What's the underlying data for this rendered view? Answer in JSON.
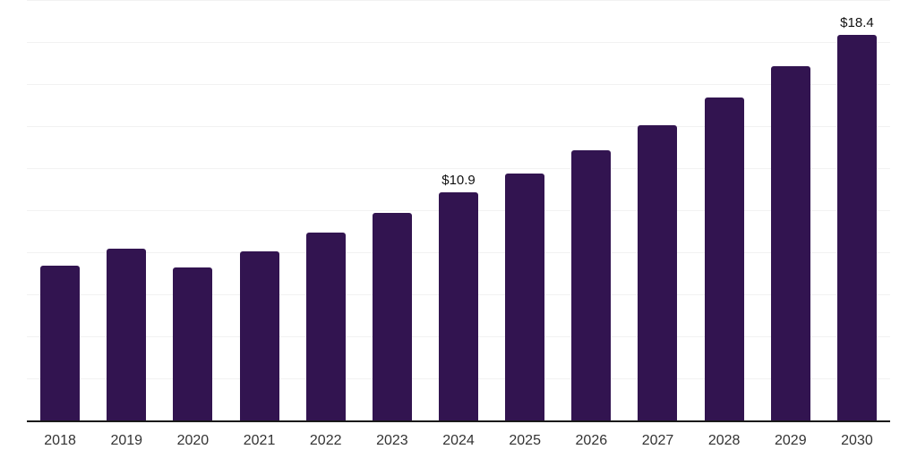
{
  "chart_data": {
    "type": "bar",
    "title": "",
    "xlabel": "",
    "ylabel": "",
    "categories": [
      "2018",
      "2019",
      "2020",
      "2021",
      "2022",
      "2023",
      "2024",
      "2025",
      "2026",
      "2027",
      "2028",
      "2029",
      "2030"
    ],
    "values": [
      7.4,
      8.2,
      7.3,
      8.1,
      9.0,
      9.9,
      10.9,
      11.8,
      12.9,
      14.1,
      15.4,
      16.9,
      18.4
    ],
    "data_labels": {
      "2024": "$10.9",
      "2030": "$18.4"
    },
    "ylim": [
      0,
      20
    ],
    "grid_step": 2,
    "grid": true,
    "y_axis_labels_visible": false,
    "legend_position": "none",
    "colors": {
      "bar": "#321450",
      "grid_line": "#f2f2f2",
      "axis_line": "#1a1a1a",
      "tick_label": "#333333",
      "data_label": "#111111",
      "background": "#ffffff"
    }
  }
}
